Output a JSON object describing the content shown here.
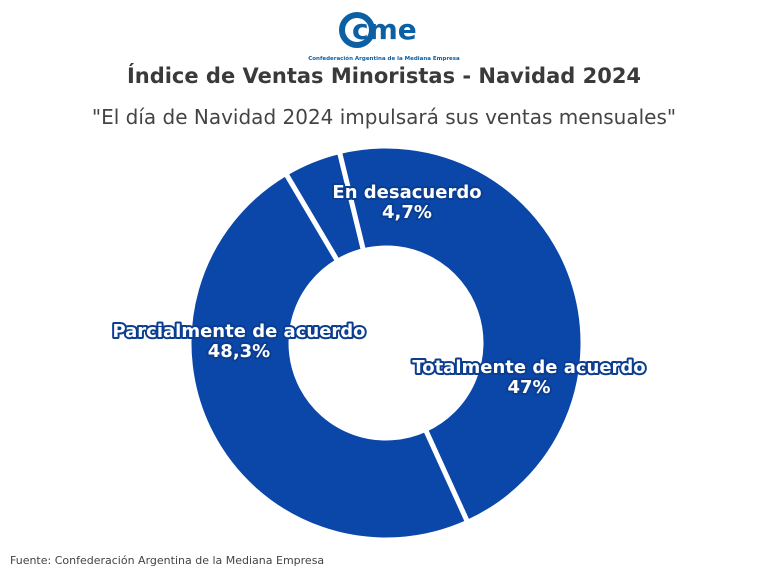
{
  "logo": {
    "text": "cme",
    "tagline": "Confederación Argentina de la Mediana Empresa"
  },
  "colors": {
    "slice": "#0a47a9",
    "brand": "#0b5fa5",
    "gap": "#ffffff"
  },
  "chart_data": {
    "type": "pie",
    "title": "Índice de Ventas Minoristas - Navidad 2024",
    "subtitle": "\"El día de Navidad 2024 impulsará sus ventas mensuales\"",
    "donut": true,
    "categories": [
      "En desacuerdo",
      "Totalmente de acuerdo",
      "Parcialmente de acuerdo"
    ],
    "values": [
      4.7,
      47,
      48.3
    ],
    "value_labels": [
      "4,7%",
      "47%",
      "48,3%"
    ]
  },
  "source": "Fuente: Confederación Argentina de la Mediana Empresa"
}
